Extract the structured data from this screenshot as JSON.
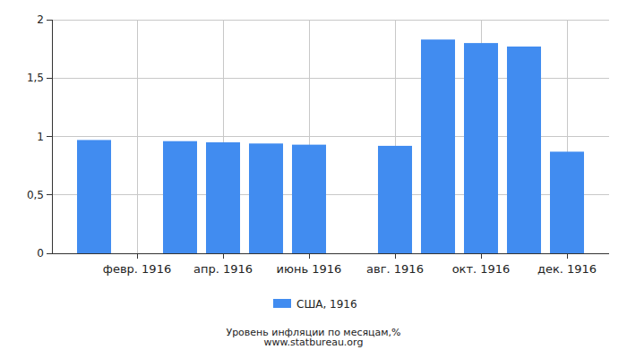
{
  "chart_data": {
    "type": "bar",
    "title": "Уровень инфляции по месяцам,%",
    "subtitle": "www.statbureau.org",
    "categories": [
      null,
      "февр. 1916",
      null,
      "апр. 1916",
      null,
      "июнь 1916",
      null,
      "авг. 1916",
      null,
      "окт. 1916",
      null,
      "дек. 1916"
    ],
    "series": [
      {
        "name": "США, 1916",
        "color": "#418cf0",
        "values": [
          0.97,
          null,
          0.96,
          0.95,
          0.94,
          0.93,
          null,
          0.92,
          1.83,
          1.8,
          1.77,
          0.87
        ]
      }
    ],
    "ylim": [
      0,
      2
    ],
    "yticks": [
      0,
      {
        "value": 0.5,
        "label": "0,5"
      },
      1,
      {
        "value": 1.5,
        "label": "1,5"
      },
      2
    ],
    "grid": true,
    "legend": "bottom"
  }
}
